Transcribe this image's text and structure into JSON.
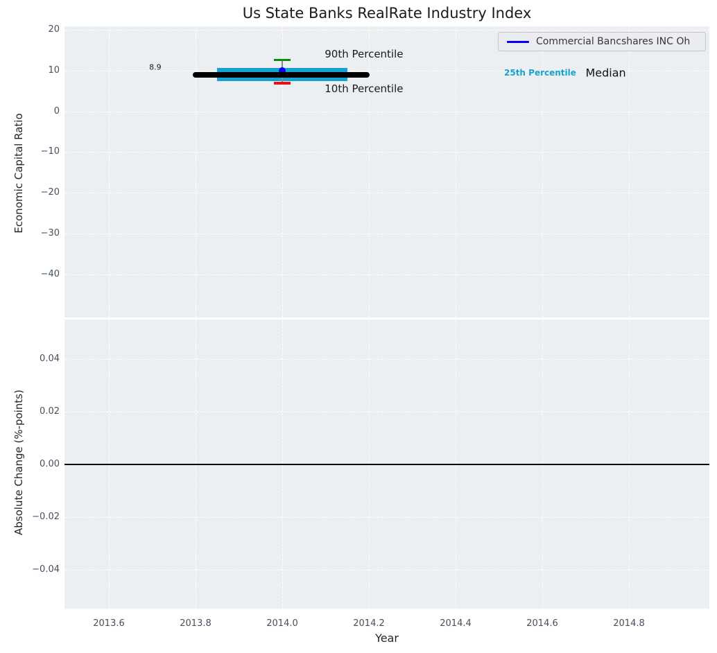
{
  "figure": {
    "bg_color": "#ffffff",
    "axes_bg_color": "#ebeff1",
    "grid_color": "#ffffff",
    "tick_color": "#43505e"
  },
  "chart_data": [
    {
      "type": "line",
      "subplot": "top",
      "title": "Us State Banks RealRate Industry Index",
      "ylabel": "Economic Capital Ratio",
      "xlabel": "Year",
      "grid": true,
      "legend_position": "upper right",
      "xlim": [
        2013.4976,
        2014.9856
      ],
      "ylim": [
        -50.6,
        20.85
      ],
      "xticks": {
        "values": [
          2013.6,
          2013.8,
          2014.0,
          2014.2,
          2014.4,
          2014.6,
          2014.8
        ],
        "labels": [
          "2013.6",
          "2013.8",
          "2014.0",
          "2014.2",
          "2014.4",
          "2014.6",
          "2014.8"
        ]
      },
      "yticks": {
        "values": [
          20,
          10,
          0,
          -10,
          -20,
          -30,
          -40
        ],
        "labels": [
          "20",
          "10",
          "0",
          "−10",
          "−20",
          "−30",
          "−40"
        ]
      },
      "legend": {
        "entries": [
          {
            "label": "Commercial Bancshares INC Oh",
            "color": "#0101f0"
          }
        ]
      },
      "series": [
        {
          "name": "median",
          "label": "Median",
          "type": "thick-line",
          "color": "#000000",
          "x": [
            2013.8,
            2014.195
          ],
          "y": [
            8.9,
            8.9
          ],
          "value": 8.9
        },
        {
          "name": "p25-band",
          "label": "25th Percentile",
          "type": "band",
          "color": "#16a3cf",
          "x": [
            2013.85,
            2014.15
          ],
          "y_low": 7.4,
          "y_high": 10.7
        },
        {
          "name": "p90-cap",
          "label": "90th Percentile",
          "type": "errorbar-cap",
          "color": "#0a8c0a",
          "x": 2014.0,
          "y": 12.6
        },
        {
          "name": "p10-cap",
          "label": "10th Percentile",
          "type": "errorbar-cap",
          "color": "#e81010",
          "x": 2014.0,
          "y": 6.9
        },
        {
          "name": "company-point",
          "label": "Commercial Bancshares INC Oh",
          "type": "point",
          "color": "#0101f0",
          "x": 2014.0,
          "y": 9.9
        }
      ],
      "errorbar_line_color": "#888888",
      "annotations": [
        {
          "text": "8.9",
          "x": 2013.693,
          "y": 10.8,
          "color": "#1a1a1a",
          "size": 11,
          "weight": "normal"
        },
        {
          "text": "90th Percentile",
          "x": 2014.098,
          "y": 14.05,
          "color": "#1a1a1a",
          "size": 15,
          "weight": "normal"
        },
        {
          "text": "10th Percentile",
          "x": 2014.098,
          "y": 5.54,
          "color": "#1a1a1a",
          "size": 15,
          "weight": "normal"
        },
        {
          "text": "25th Percentile",
          "x": 2014.512,
          "y": 9.45,
          "color": "#16a3cf",
          "size": 12,
          "weight": "bold"
        },
        {
          "text": "Median",
          "x": 2014.7,
          "y": 9.45,
          "color": "#111111",
          "size": 16,
          "weight": "normal"
        }
      ]
    },
    {
      "type": "line",
      "subplot": "bottom",
      "ylabel": "Absolute Change (%-points)",
      "xlabel": "Year",
      "grid": true,
      "xlim": [
        2013.4976,
        2014.9856
      ],
      "ylim": [
        -0.0547,
        0.055
      ],
      "xticks": {
        "values": [
          2013.6,
          2013.8,
          2014.0,
          2014.2,
          2014.4,
          2014.6,
          2014.8
        ],
        "labels": [
          "2013.6",
          "2013.8",
          "2014.0",
          "2014.2",
          "2014.4",
          "2014.6",
          "2014.8"
        ]
      },
      "yticks": {
        "values": [
          0.04,
          0.02,
          0.0,
          -0.02,
          -0.04
        ],
        "labels": [
          "0.04",
          "0.02",
          "0.00",
          "−0.02",
          "−0.04"
        ]
      },
      "zero_line": {
        "y": 0.0,
        "color": "#000000"
      },
      "series": []
    }
  ]
}
